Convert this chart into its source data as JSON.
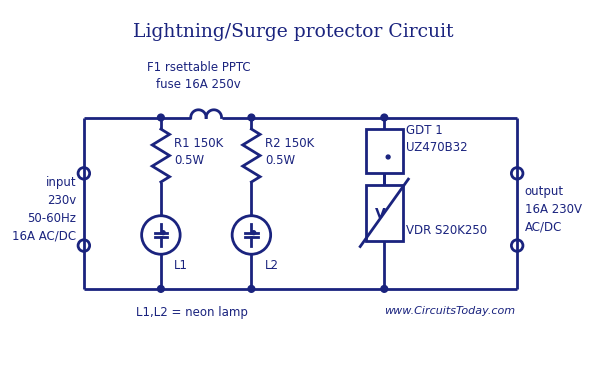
{
  "title": "Lightning/Surge protector Circuit",
  "color": "#1a237e",
  "bg_color": "#ffffff",
  "input_label": "input\n230v\n50-60Hz\n16A AC/DC",
  "output_label": "output\n16A 230V\nAC/DC",
  "fuse_label": "F1 rsettable PPTC\nfuse 16A 250v",
  "r1_label": "R1 150K\n0.5W",
  "r2_label": "R2 150K\n0.5W",
  "l1_label": "L1",
  "l2_label": "L2",
  "gdt_label": "GDT 1\nUZ470B32",
  "vdr_label": "VDR S20K250",
  "neon_label": "L1,L2 = neon lamp",
  "website": "www.CircuitsToday.com"
}
